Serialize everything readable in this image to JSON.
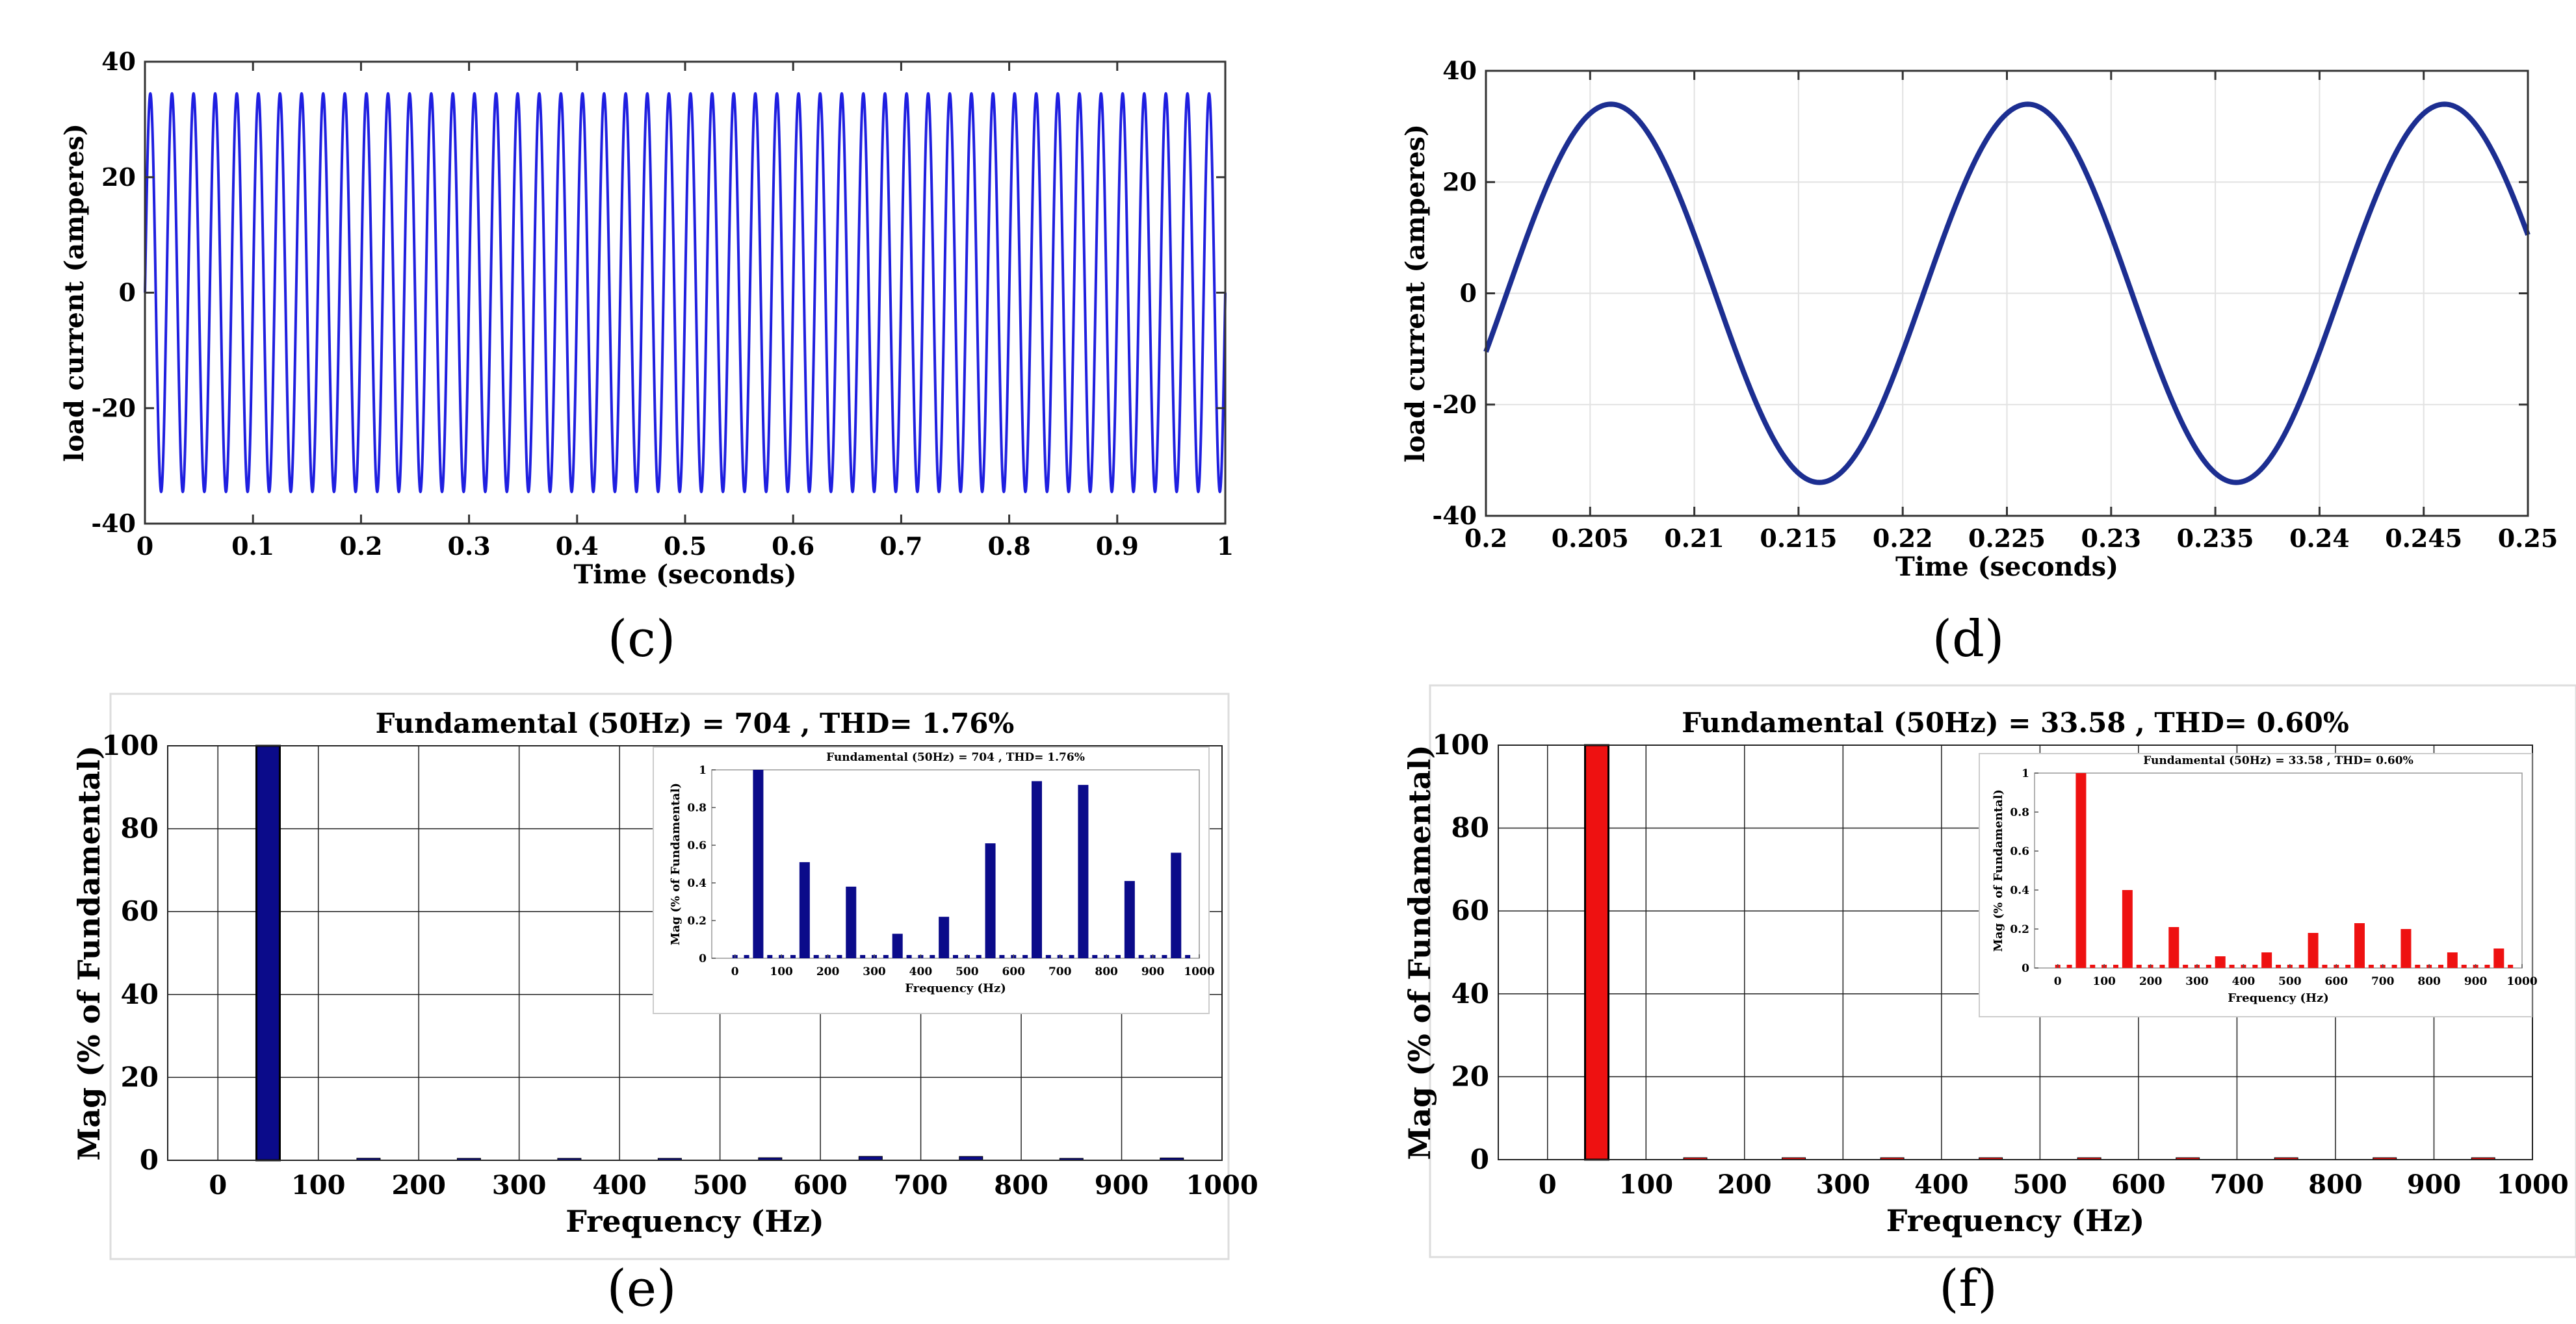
{
  "panels": [
    {
      "id": "c",
      "label": "(c)",
      "chart_data": {
        "type": "line",
        "title": "",
        "xlabel": "Time (seconds)",
        "ylabel": "load current (amperes)",
        "xlim": [
          0,
          1
        ],
        "ylim": [
          -40,
          40
        ],
        "xticks": [
          0,
          0.1,
          0.2,
          0.3,
          0.4,
          0.5,
          0.6,
          0.7,
          0.8,
          0.9,
          1
        ],
        "xtick_labels": [
          "0",
          "0.1",
          "0.2",
          "0.3",
          "0.4",
          "0.5",
          "0.6",
          "0.7",
          "0.8",
          "0.9",
          "1"
        ],
        "yticks": [
          -40,
          -20,
          0,
          20,
          40
        ],
        "ytick_labels": [
          "-40",
          "-20",
          "0",
          "20",
          "40"
        ],
        "grid": false,
        "series": [
          {
            "name": "load current",
            "amplitude": 34.5,
            "frequency_hz": 50,
            "phase_deg": 0,
            "x_range": [
              0,
              1
            ],
            "color": "#1f1fe0"
          }
        ]
      }
    },
    {
      "id": "d",
      "label": "(d)",
      "chart_data": {
        "type": "line",
        "title": "",
        "xlabel": "Time (seconds)",
        "ylabel": "load current (amperes)",
        "xlim": [
          0.2,
          0.25
        ],
        "ylim": [
          -40,
          40
        ],
        "xticks": [
          0.2,
          0.205,
          0.21,
          0.215,
          0.22,
          0.225,
          0.23,
          0.235,
          0.24,
          0.245,
          0.25
        ],
        "xtick_labels": [
          "0.2",
          "0.205",
          "0.21",
          "0.215",
          "0.22",
          "0.225",
          "0.23",
          "0.235",
          "0.24",
          "0.245",
          "0.25"
        ],
        "yticks": [
          -40,
          -20,
          0,
          20,
          40
        ],
        "ytick_labels": [
          "-40",
          "-20",
          "0",
          "20",
          "40"
        ],
        "grid": true,
        "series": [
          {
            "name": "load current",
            "amplitude": 34,
            "frequency_hz": 50,
            "phase_deg": -18,
            "x_range": [
              0.2,
              0.25
            ],
            "color": "#1c2e91"
          }
        ]
      }
    },
    {
      "id": "e",
      "label": "(e)",
      "chart_data": {
        "type": "bar",
        "title": "Fundamental (50Hz) = 704 , THD= 1.76%",
        "xlabel": "Frequency (Hz)",
        "ylabel": "Mag (% of Fundamental)",
        "xlim": [
          -50,
          1000
        ],
        "ylim": [
          0,
          100
        ],
        "xticks": [
          0,
          100,
          200,
          300,
          400,
          500,
          600,
          700,
          800,
          900,
          1000
        ],
        "xtick_labels": [
          "0",
          "100",
          "200",
          "300",
          "400",
          "500",
          "600",
          "700",
          "800",
          "900",
          "1000"
        ],
        "yticks": [
          0,
          20,
          40,
          60,
          80,
          100
        ],
        "ytick_labels": [
          "0",
          "20",
          "40",
          "60",
          "80",
          "100"
        ],
        "grid": true,
        "bar_color": "#0b0b8a",
        "x": [
          50,
          150,
          250,
          350,
          450,
          550,
          650,
          750,
          850,
          950
        ],
        "values": [
          100,
          0.5,
          0.38,
          0.13,
          0.22,
          0.62,
          0.94,
          0.92,
          0.41,
          0.57
        ],
        "inset": {
          "title": "Fundamental (50Hz) = 704 , THD= 1.76%",
          "xlabel": "Frequency (Hz)",
          "ylabel": "Mag (% of Fundamental)",
          "xlim": [
            -50,
            1000
          ],
          "ylim": [
            0,
            1
          ],
          "xticks": [
            0,
            100,
            200,
            300,
            400,
            500,
            600,
            700,
            800,
            900,
            1000
          ],
          "xtick_labels": [
            "0",
            "100",
            "200",
            "300",
            "400",
            "500",
            "600",
            "700",
            "800",
            "900",
            "1000"
          ],
          "yticks": [
            0,
            0.2,
            0.4,
            0.6,
            0.8,
            1
          ],
          "ytick_labels": [
            "0",
            "0.2",
            "0.4",
            "0.6",
            "0.8",
            "1"
          ],
          "x": [
            50,
            150,
            250,
            350,
            450,
            550,
            650,
            750,
            850,
            950
          ],
          "values": [
            1,
            0.51,
            0.38,
            0.13,
            0.22,
            0.61,
            0.94,
            0.92,
            0.41,
            0.56
          ]
        }
      }
    },
    {
      "id": "f",
      "label": "(f)",
      "chart_data": {
        "type": "bar",
        "title": "Fundamental (50Hz) = 33.58 , THD= 0.60%",
        "xlabel": "Frequency (Hz)",
        "ylabel": "Mag (% of Fundamental)",
        "xlim": [
          -50,
          1000
        ],
        "ylim": [
          0,
          100
        ],
        "xticks": [
          0,
          100,
          200,
          300,
          400,
          500,
          600,
          700,
          800,
          900,
          1000
        ],
        "xtick_labels": [
          "0",
          "100",
          "200",
          "300",
          "400",
          "500",
          "600",
          "700",
          "800",
          "900",
          "1000"
        ],
        "yticks": [
          0,
          20,
          40,
          60,
          80,
          100
        ],
        "ytick_labels": [
          "0",
          "20",
          "40",
          "60",
          "80",
          "100"
        ],
        "grid": true,
        "bar_color": "#ee1111",
        "x": [
          50,
          150,
          250,
          350,
          450,
          550,
          650,
          750,
          850,
          950
        ],
        "values": [
          100,
          0.4,
          0.21,
          0.06,
          0.08,
          0.18,
          0.23,
          0.2,
          0.08,
          0.1
        ],
        "inset": {
          "title": "Fundamental (50Hz) = 33.58 , THD= 0.60%",
          "xlabel": "Frequency (Hz)",
          "ylabel": "Mag (% of Fundamental)",
          "xlim": [
            -50,
            1000
          ],
          "ylim": [
            0,
            1
          ],
          "xticks": [
            0,
            100,
            200,
            300,
            400,
            500,
            600,
            700,
            800,
            900,
            1000
          ],
          "xtick_labels": [
            "0",
            "100",
            "200",
            "300",
            "400",
            "500",
            "600",
            "700",
            "800",
            "900",
            "1000"
          ],
          "yticks": [
            0,
            0.2,
            0.4,
            0.6,
            0.8,
            1
          ],
          "ytick_labels": [
            "0",
            "0.2",
            "0.4",
            "0.6",
            "0.8",
            "1"
          ],
          "x": [
            50,
            150,
            250,
            350,
            450,
            550,
            650,
            750,
            850,
            950
          ],
          "values": [
            1,
            0.4,
            0.21,
            0.06,
            0.08,
            0.18,
            0.23,
            0.2,
            0.08,
            0.1
          ]
        }
      }
    }
  ]
}
